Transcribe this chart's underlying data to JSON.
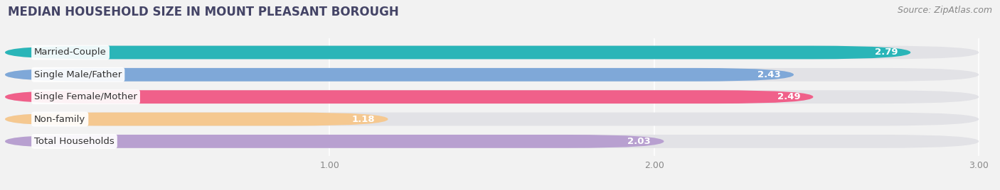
{
  "title": "MEDIAN HOUSEHOLD SIZE IN MOUNT PLEASANT BOROUGH",
  "source": "Source: ZipAtlas.com",
  "categories": [
    "Married-Couple",
    "Single Male/Father",
    "Single Female/Mother",
    "Non-family",
    "Total Households"
  ],
  "values": [
    2.79,
    2.43,
    2.49,
    1.18,
    2.03
  ],
  "bar_colors": [
    "#2ab5b8",
    "#7fa8d8",
    "#f0608a",
    "#f5c890",
    "#b8a0d0"
  ],
  "xlim_min": 0,
  "xlim_max": 3.0,
  "xticks": [
    1.0,
    2.0,
    3.0
  ],
  "bar_height": 0.6,
  "background_color": "#f2f2f2",
  "bar_bg_color": "#e2e2e6",
  "title_fontsize": 12,
  "label_fontsize": 9.5,
  "value_fontsize": 9.5,
  "source_fontsize": 9
}
